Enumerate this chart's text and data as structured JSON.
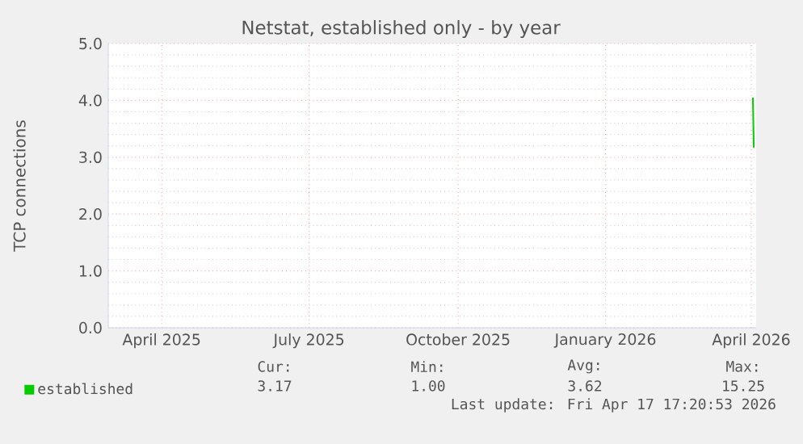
{
  "chart_data": {
    "type": "line",
    "title": "Netstat, established only - by year",
    "ylabel": "TCP connections",
    "xlim": [
      "2025-03-13",
      "2026-04-17"
    ],
    "xticks": [
      {
        "value": "2025-04-15",
        "label": "April 2025"
      },
      {
        "value": "2025-07-15",
        "label": "July 2025"
      },
      {
        "value": "2025-10-15",
        "label": "October 2025"
      },
      {
        "value": "2026-01-14",
        "label": "January 2026"
      },
      {
        "value": "2026-04-14",
        "label": "April 2026"
      }
    ],
    "ylim": [
      0,
      5
    ],
    "yticks": [
      {
        "value": 0,
        "label": "0.0"
      },
      {
        "value": 1,
        "label": "1.0"
      },
      {
        "value": 2,
        "label": "2.0"
      },
      {
        "value": 3,
        "label": "3.0"
      },
      {
        "value": 4,
        "label": "4.0"
      },
      {
        "value": 5,
        "label": "5.0"
      }
    ],
    "series": [
      {
        "name": "established",
        "color": "#00cc00",
        "x": [
          "2026-04-15T00:00",
          "2026-04-15T12:00"
        ],
        "values": [
          4.05,
          3.17
        ]
      }
    ],
    "grid": true,
    "legend": "bottom",
    "marker": "none",
    "line_style": "solid",
    "annotations": [
      "Cur:",
      "3.17",
      "Min:",
      "1.00",
      "Avg:",
      "3.62",
      "Max:",
      "15.25",
      "Last update: Fri Apr 17 17:20:53 2026"
    ]
  }
}
